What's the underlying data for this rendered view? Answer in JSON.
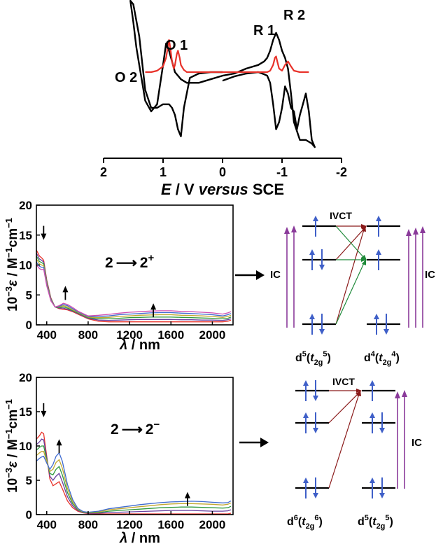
{
  "chart_data": [
    {
      "type": "line",
      "xlabel": {
        "main": "E",
        "sep": " / V ",
        "ital": "versus",
        "tail": " SCE"
      },
      "xlim": [
        2,
        -2
      ],
      "x_ticks": [
        "2",
        "1",
        "0",
        "-1",
        "-2"
      ],
      "x_tick_values": [
        2,
        1,
        0,
        -1,
        -2
      ],
      "peak_labels": [
        "O 1",
        "O 2",
        "R 1",
        "R 2"
      ],
      "colors": {
        "cv": "#000000",
        "dpv": "#e8322a"
      },
      "series": [
        {
          "x": [
            0.0,
            0.2,
            0.4,
            0.55,
            0.65,
            0.7,
            0.75,
            0.8,
            0.85,
            0.9,
            1.0,
            1.1,
            1.2,
            1.3,
            1.4,
            1.5,
            1.55,
            1.5,
            1.45,
            1.4,
            1.35,
            1.3,
            1.2,
            1.1,
            1.0,
            0.95,
            0.9,
            0.85,
            0.8,
            0.7,
            0.6,
            0.4,
            0.2,
            0.0,
            -0.2,
            -0.4,
            -0.6,
            -0.7,
            -0.75,
            -0.8,
            -0.85,
            -0.9,
            -0.95,
            -1.0,
            -1.05,
            -1.1,
            -1.15,
            -1.2,
            -1.3,
            -1.4,
            -1.5,
            -1.55,
            -1.5,
            -1.45,
            -1.4,
            -1.35,
            -1.3,
            -1.25,
            -1.2,
            -1.15,
            -1.1,
            -1.05,
            -1.0,
            -0.95,
            -0.9,
            -0.85,
            -0.8,
            -0.75,
            -0.7,
            -0.6,
            -0.4,
            -0.2,
            0.0
          ],
          "y": [
            0.0,
            0.0,
            -0.02,
            -0.08,
            -0.5,
            -0.9,
            -0.8,
            -0.6,
            -0.5,
            -0.45,
            -0.45,
            -0.5,
            -0.5,
            -0.25,
            0.5,
            0.95,
            1.0,
            0.7,
            0.35,
            0.1,
            -0.15,
            -0.4,
            -0.55,
            -0.45,
            0.1,
            0.4,
            0.3,
            0.15,
            0.0,
            -0.1,
            -0.15,
            -0.15,
            -0.1,
            -0.05,
            -0.02,
            0.05,
            0.1,
            0.15,
            0.2,
            0.3,
            0.45,
            0.55,
            0.45,
            0.3,
            0.2,
            0.05,
            -0.3,
            -0.7,
            -0.95,
            -0.95,
            -1.0,
            -1.05,
            -0.95,
            -0.55,
            -0.3,
            -0.45,
            -0.6,
            -0.8,
            -0.55,
            -0.5,
            -0.3,
            -0.2,
            -0.5,
            -0.7,
            -0.8,
            -0.45,
            -0.15,
            -0.05,
            -0.03,
            0.0,
            -0.02,
            -0.06,
            -0.12
          ]
        },
        {
          "x": [
            1.3,
            1.2,
            1.1,
            1.0,
            0.95,
            0.92,
            0.9,
            0.88,
            0.85,
            0.82,
            0.8,
            0.77,
            0.75,
            0.72,
            0.7,
            0.65,
            0.6,
            0.4,
            0.2,
            0.0,
            -0.2,
            -0.4,
            -0.6,
            -0.75,
            -0.8,
            -0.85,
            -0.88,
            -0.9,
            -0.92,
            -0.95,
            -1.0,
            -1.05,
            -1.1,
            -1.15,
            -1.2,
            -1.3,
            -1.4,
            -1.45
          ],
          "y": [
            0.0,
            0.0,
            0.02,
            0.08,
            0.2,
            0.35,
            0.45,
            0.35,
            0.15,
            0.05,
            0.1,
            0.25,
            0.3,
            0.2,
            0.1,
            0.03,
            0.0,
            0.0,
            0.0,
            0.0,
            0.0,
            0.0,
            0.0,
            0.0,
            0.02,
            0.1,
            0.2,
            0.22,
            0.15,
            0.05,
            0.02,
            0.1,
            0.15,
            0.08,
            0.02,
            0.0,
            0.0,
            0.0
          ]
        }
      ]
    },
    {
      "type": "line",
      "ylabel": {
        "pre": "10",
        "sup": "−3",
        "eps": "ε",
        "mid": " / M",
        "sup2": "−1",
        "mid2": "cm",
        "sup3": "−1"
      },
      "xlabel": {
        "lam": "λ",
        "unit": " / nm"
      },
      "xlim": [
        300,
        2200
      ],
      "ylim": [
        0,
        20
      ],
      "x_ticks": [
        "400",
        "800",
        "1200",
        "1600",
        "2000"
      ],
      "x_tick_values": [
        400,
        800,
        1200,
        1600,
        2000
      ],
      "y_ticks": [
        "0",
        "5",
        "10",
        "15",
        "20"
      ],
      "y_tick_values": [
        0,
        5,
        10,
        15,
        20
      ],
      "annotation": {
        "from": "2",
        "to": "2",
        "charge": "+"
      },
      "arrow_positions": [
        {
          "x": 370,
          "y": 14.2,
          "dir": "down"
        },
        {
          "x": 580,
          "y": 6.5,
          "dir": "up"
        },
        {
          "x": 1430,
          "y": 3.6,
          "dir": "up"
        }
      ],
      "x": [
        300,
        330,
        350,
        370,
        400,
        440,
        480,
        520,
        560,
        600,
        650,
        700,
        800,
        900,
        1000,
        1100,
        1200,
        1300,
        1400,
        1500,
        1600,
        1700,
        1800,
        1900,
        2000,
        2100,
        2150,
        2180
      ],
      "series": [
        {
          "values": [
            12.5,
            11.5,
            11.2,
            10.8,
            7.5,
            4.5,
            3.0,
            2.7,
            2.6,
            2.5,
            2.2,
            1.8,
            1.0,
            0.6,
            0.5,
            0.5,
            0.5,
            0.5,
            0.5,
            0.5,
            0.5,
            0.5,
            0.5,
            0.5,
            0.5,
            0.5,
            0.6,
            0.8
          ]
        },
        {
          "values": [
            12.0,
            11.0,
            10.8,
            10.5,
            7.3,
            4.4,
            3.0,
            2.8,
            2.8,
            2.6,
            2.3,
            1.9,
            1.1,
            0.8,
            0.75,
            0.8,
            0.85,
            0.9,
            0.9,
            0.9,
            0.9,
            0.85,
            0.85,
            0.8,
            0.8,
            0.75,
            0.85,
            1.0
          ]
        },
        {
          "values": [
            11.5,
            10.6,
            10.4,
            10.2,
            7.1,
            4.3,
            3.0,
            2.9,
            3.0,
            2.8,
            2.4,
            2.0,
            1.2,
            1.0,
            1.0,
            1.1,
            1.2,
            1.25,
            1.3,
            1.3,
            1.3,
            1.25,
            1.2,
            1.15,
            1.1,
            1.0,
            1.1,
            1.3
          ]
        },
        {
          "values": [
            11.0,
            10.2,
            10.0,
            9.9,
            6.9,
            4.2,
            3.0,
            3.0,
            3.2,
            3.0,
            2.5,
            2.1,
            1.3,
            1.2,
            1.25,
            1.4,
            1.5,
            1.6,
            1.65,
            1.7,
            1.7,
            1.6,
            1.55,
            1.5,
            1.4,
            1.25,
            1.4,
            1.6
          ]
        },
        {
          "values": [
            10.5,
            9.8,
            9.6,
            9.6,
            6.7,
            4.1,
            3.0,
            3.1,
            3.4,
            3.2,
            2.7,
            2.2,
            1.4,
            1.4,
            1.5,
            1.7,
            1.8,
            1.9,
            2.0,
            2.05,
            2.05,
            1.95,
            1.9,
            1.8,
            1.7,
            1.5,
            1.7,
            1.9
          ]
        },
        {
          "values": [
            10.0,
            9.4,
            9.2,
            9.3,
            6.5,
            4.0,
            3.0,
            3.2,
            3.6,
            3.4,
            2.9,
            2.3,
            1.5,
            1.6,
            1.75,
            1.95,
            2.1,
            2.2,
            2.3,
            2.35,
            2.35,
            2.25,
            2.2,
            2.1,
            2.0,
            1.8,
            2.0,
            2.2
          ]
        }
      ],
      "series_colors": [
        "#e8322a",
        "#6a3fa0",
        "#2f9a3f",
        "#c2a830",
        "#3f6bd0",
        "#d04fb0"
      ]
    },
    {
      "type": "line",
      "ylabel": {
        "pre": "10",
        "sup": "−3",
        "eps": "ε",
        "mid": " / M",
        "sup2": "−1",
        "mid2": "cm",
        "sup3": "−1"
      },
      "xlabel": {
        "lam": "λ",
        "unit": " / nm"
      },
      "xlim": [
        300,
        2200
      ],
      "ylim": [
        0,
        20
      ],
      "x_ticks": [
        "400",
        "800",
        "1200",
        "1600",
        "2000"
      ],
      "x_tick_values": [
        400,
        800,
        1200,
        1600,
        2000
      ],
      "y_ticks": [
        "0",
        "5",
        "10",
        "15",
        "20"
      ],
      "y_tick_values": [
        0,
        5,
        10,
        15,
        20
      ],
      "annotation": {
        "from": "2",
        "to": "2",
        "charge": "−"
      },
      "arrow_positions": [
        {
          "x": 370,
          "y": 14.2,
          "dir": "down"
        },
        {
          "x": 520,
          "y": 11.0,
          "dir": "up"
        },
        {
          "x": 1760,
          "y": 3.3,
          "dir": "up"
        }
      ],
      "x": [
        300,
        330,
        350,
        370,
        400,
        430,
        460,
        490,
        520,
        550,
        600,
        650,
        700,
        750,
        800,
        900,
        1000,
        1100,
        1200,
        1300,
        1400,
        1500,
        1600,
        1700,
        1800,
        1900,
        2000,
        2100,
        2150,
        2180
      ],
      "series": [
        {
          "values": [
            11.0,
            11.5,
            12.0,
            11.8,
            8.5,
            5.2,
            4.2,
            4.5,
            4.8,
            3.8,
            2.0,
            1.0,
            0.5,
            0.25,
            0.15,
            0.1,
            0.1,
            0.1,
            0.1,
            0.1,
            0.1,
            0.1,
            0.1,
            0.1,
            0.1,
            0.1,
            0.1,
            0.1,
            0.1,
            0.2
          ]
        },
        {
          "values": [
            10.2,
            10.6,
            11.0,
            10.9,
            8.3,
            5.6,
            5.0,
            5.6,
            6.0,
            4.8,
            2.6,
            1.3,
            0.6,
            0.3,
            0.2,
            0.2,
            0.3,
            0.35,
            0.4,
            0.45,
            0.5,
            0.55,
            0.6,
            0.6,
            0.6,
            0.55,
            0.5,
            0.5,
            0.55,
            0.7
          ]
        },
        {
          "values": [
            9.4,
            9.8,
            10.0,
            10.0,
            8.0,
            6.0,
            5.8,
            6.6,
            7.0,
            5.8,
            3.2,
            1.6,
            0.7,
            0.35,
            0.25,
            0.3,
            0.5,
            0.6,
            0.7,
            0.8,
            0.9,
            1.0,
            1.05,
            1.1,
            1.1,
            1.05,
            1.0,
            0.95,
            1.0,
            1.2
          ]
        },
        {
          "values": [
            8.6,
            9.0,
            9.2,
            9.2,
            7.8,
            6.3,
            6.6,
            7.6,
            8.0,
            6.8,
            3.8,
            1.9,
            0.8,
            0.4,
            0.3,
            0.4,
            0.7,
            0.85,
            1.0,
            1.15,
            1.3,
            1.45,
            1.55,
            1.6,
            1.6,
            1.55,
            1.5,
            1.4,
            1.5,
            1.7
          ]
        },
        {
          "values": [
            7.8,
            8.2,
            8.4,
            8.5,
            7.5,
            6.6,
            7.3,
            8.5,
            9.0,
            7.8,
            4.4,
            2.2,
            0.9,
            0.45,
            0.35,
            0.5,
            0.85,
            1.05,
            1.25,
            1.45,
            1.6,
            1.75,
            1.85,
            1.9,
            1.95,
            1.9,
            1.8,
            1.7,
            1.75,
            2.0
          ]
        }
      ],
      "series_colors": [
        "#e8322a",
        "#6a3fa0",
        "#2f9a3f",
        "#c2a830",
        "#3f6bd0"
      ]
    }
  ],
  "diagram_top": {
    "title": "IVCT",
    "left_label": {
      "pre": "d",
      "sup": "5",
      "t": "t",
      "sub": "2g",
      "sup2": "5"
    },
    "right_label": {
      "pre": "d",
      "sup": "4",
      "t": "t",
      "sub": "2g",
      "sup2": "4"
    },
    "ic_left": "IC",
    "ic_right": "IC"
  },
  "diagram_bottom": {
    "title": "IVCT",
    "left_label": {
      "pre": "d",
      "sup": "6",
      "t": "t",
      "sub": "2g",
      "sup2": "6"
    },
    "right_label": {
      "pre": "d",
      "sup": "5",
      "t": "t",
      "sub": "2g",
      "sup2": "5"
    },
    "ic_right": "IC"
  },
  "colors": {
    "electron": "#3f5fc8",
    "ivct_red": "#8a1a1a",
    "ivct_green": "#1f8a3a",
    "ic_purple": "#8a3a9a"
  }
}
